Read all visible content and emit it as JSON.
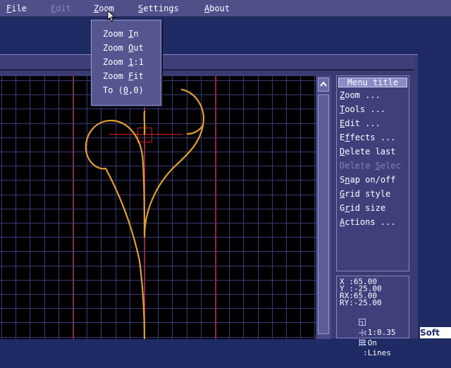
{
  "menubar": {
    "items": [
      {
        "mnemonic": "F",
        "rest": "ile"
      },
      {
        "mnemonic": "E",
        "rest": "dit"
      },
      {
        "mnemonic": "Z",
        "rest": "oom"
      },
      {
        "mnemonic": "S",
        "rest": "ettings"
      },
      {
        "mnemonic": "A",
        "rest": "bout"
      }
    ]
  },
  "zoom_menu": {
    "items": [
      {
        "pre": "Zoom ",
        "mnemonic": "I",
        "post": "n"
      },
      {
        "pre": "Zoom ",
        "mnemonic": "O",
        "post": "ut"
      },
      {
        "pre": "Zoom ",
        "mnemonic": "1",
        "post": ":1"
      },
      {
        "pre": "Zoom ",
        "mnemonic": "F",
        "post": "it"
      },
      {
        "pre": "To (",
        "mnemonic": "0",
        "post": ",0)"
      }
    ]
  },
  "side_menu": {
    "title": "Menu title",
    "items": [
      {
        "pre": "",
        "mnemonic": "Z",
        "post": "oom ..."
      },
      {
        "pre": "",
        "mnemonic": "T",
        "post": "ools ..."
      },
      {
        "pre": "",
        "mnemonic": "E",
        "post": "dit ..."
      },
      {
        "pre": "E",
        "mnemonic": "f",
        "post": "fects ..."
      },
      {
        "pre": "",
        "mnemonic": "D",
        "post": "elete last"
      },
      {
        "pre": "Delete ",
        "mnemonic": "S",
        "post": "elec"
      },
      {
        "pre": "S",
        "mnemonic": "n",
        "post": "ap on/off"
      },
      {
        "pre": "",
        "mnemonic": "G",
        "post": "rid style"
      },
      {
        "pre": "G",
        "mnemonic": "r",
        "post": "id size"
      },
      {
        "pre": "",
        "mnemonic": "A",
        "post": "ctions ..."
      }
    ]
  },
  "info": {
    "x_label": "X",
    "x_value": "65.00",
    "y_label": "Y",
    "y_value": "-25.00",
    "rx_label": "RX",
    "rx_value": "65.00",
    "ry_label": "RY",
    "ry_value": "-25.00",
    "scale_value": "1:0.35",
    "snap_value": "On",
    "grid_value": "Lines"
  },
  "logo": {
    "left": "",
    "right": "Soft"
  },
  "icons": {
    "cursor": "arrow-pointer-icon",
    "scroll_up": "chevron-up-icon",
    "scale": "ratio-icon",
    "snap": "crosshair-icon",
    "grid": "grid-icon"
  },
  "colors": {
    "desktop": "#1e2a63",
    "menubar": "#4f4f8a",
    "canvas": "#000000",
    "grid": "#3a3a78",
    "guide": "#d02020",
    "curve": "#e0a030",
    "disabled_text": "#8585b6"
  }
}
